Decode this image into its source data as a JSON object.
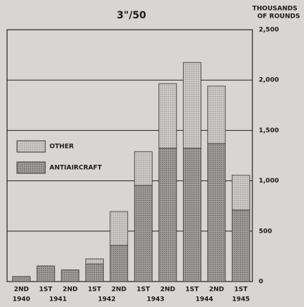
{
  "chart_data": {
    "type": "stacked-bar",
    "title": "3\"/50",
    "y_axis_label": [
      "THOUSANDS",
      "OF ROUNDS"
    ],
    "categories": [
      "2ND",
      "1ST",
      "2ND",
      "1ST",
      "2ND",
      "1ST",
      "2ND",
      "1ST",
      "2ND",
      "1ST"
    ],
    "x_groups": [
      {
        "label": "1940",
        "size": 1
      },
      {
        "label": "1941",
        "size": 2
      },
      {
        "label": "1942",
        "size": 2
      },
      {
        "label": "1943",
        "size": 2
      },
      {
        "label": "1944",
        "size": 2
      },
      {
        "label": "1945",
        "size": 1
      }
    ],
    "series": [
      {
        "name": "ANTIAIRCRAFT",
        "color": "#9d9b98",
        "values": [
          50,
          155,
          115,
          175,
          360,
          955,
          1325,
          1325,
          1370,
          710
        ]
      },
      {
        "name": "OTHER",
        "color": "#c9c7c3",
        "values": [
          0,
          0,
          0,
          50,
          335,
          335,
          640,
          850,
          570,
          345
        ]
      }
    ],
    "ylim": [
      0,
      2500
    ],
    "yticks": [
      0,
      500,
      {
        "value": 1000,
        "label": "1,000"
      },
      {
        "value": 1500,
        "label": "1,500"
      },
      {
        "value": 2000,
        "label": "2,000"
      },
      {
        "value": 2500,
        "label": "2,500"
      }
    ],
    "grid": true,
    "y_axis_side": "right"
  }
}
